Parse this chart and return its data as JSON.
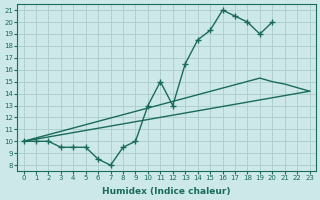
{
  "xlabel": "Humidex (Indice chaleur)",
  "bg_color": "#cce8e8",
  "line_color": "#1a6b5a",
  "grid_color": "#b0d0d0",
  "xlim": [
    -0.5,
    23.5
  ],
  "ylim": [
    7.5,
    21.5
  ],
  "xticks": [
    0,
    1,
    2,
    3,
    4,
    5,
    6,
    7,
    8,
    9,
    10,
    11,
    12,
    13,
    14,
    15,
    16,
    17,
    18,
    19,
    20,
    21,
    22,
    23
  ],
  "yticks": [
    8,
    9,
    10,
    11,
    12,
    13,
    14,
    15,
    16,
    17,
    18,
    19,
    20,
    21
  ],
  "line1_x": [
    0,
    1,
    2,
    3,
    4,
    5,
    6,
    7,
    8,
    9,
    10,
    11,
    12,
    13,
    14,
    15,
    16,
    17,
    18,
    19,
    20
  ],
  "line1_y": [
    10,
    10,
    10,
    9.5,
    9.5,
    9.5,
    8.5,
    8.0,
    9.5,
    10.0,
    13.0,
    15.0,
    13.0,
    16.5,
    18.5,
    19.3,
    21.0,
    20.5,
    20.0,
    19.0,
    20.0
  ],
  "line2_x": [
    0,
    23
  ],
  "line2_y": [
    10,
    14.2
  ],
  "line3_x": [
    0,
    19,
    20,
    21,
    22,
    23
  ],
  "line3_y": [
    10,
    15.3,
    15.0,
    14.8,
    14.5,
    14.2
  ]
}
